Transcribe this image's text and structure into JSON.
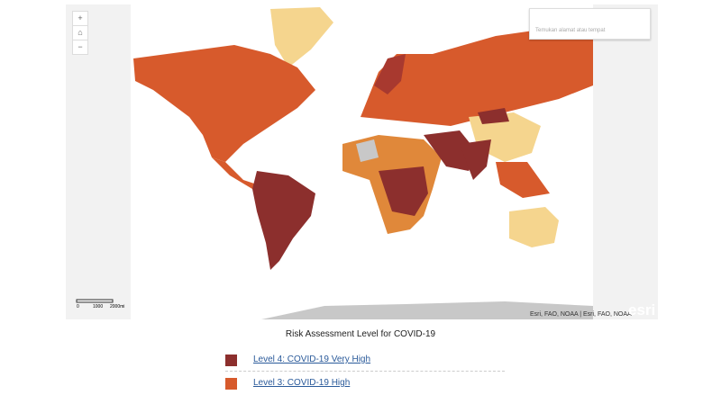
{
  "search": {
    "placeholder": "Temukan alamat atau tempat"
  },
  "map": {
    "scale_labels": [
      "0",
      "1000",
      "2000mi"
    ],
    "attribution": "Esri, FAO, NOAA | Esri, FAO, NOAA",
    "logo": "esri"
  },
  "legend": {
    "title": "Risk Assessment Level for COVID-19",
    "items": [
      {
        "label": "Level 4: COVID-19 Very High",
        "color": "#8c2f2d"
      },
      {
        "label": "Level 3: COVID-19 High",
        "color": "#d75a2c"
      }
    ]
  }
}
